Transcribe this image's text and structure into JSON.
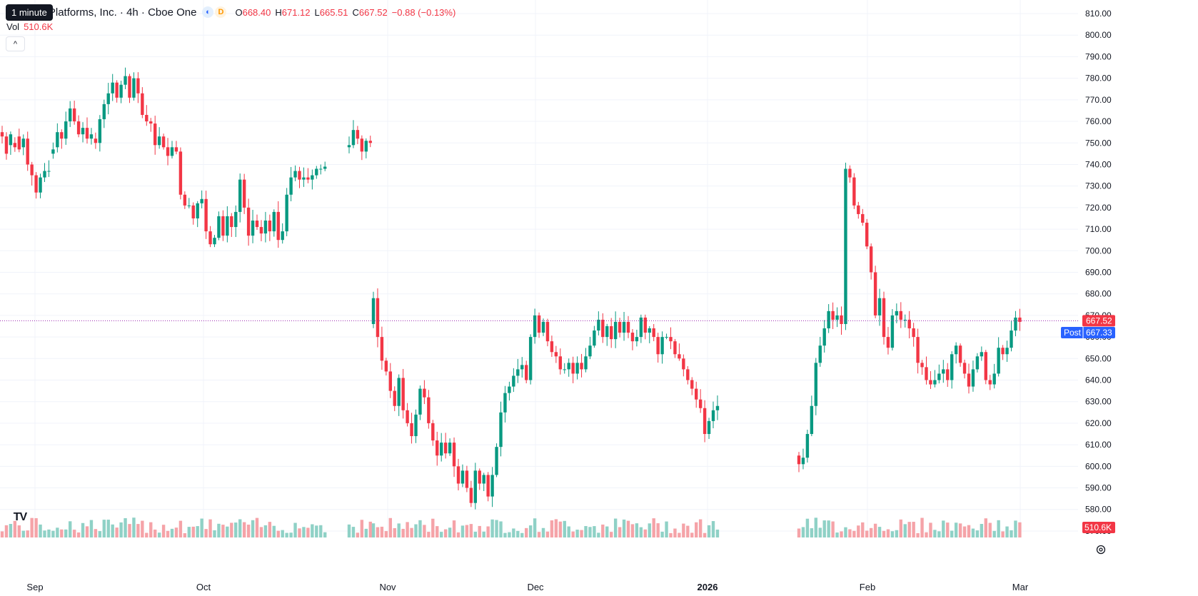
{
  "tooltip": "1 minute",
  "legend": {
    "title": "Platforms, Inc. · 4h · Cboe One",
    "session_icon": "moon-sun-icon",
    "delay_badge": "D",
    "open_label": "O",
    "open": "668.40",
    "high_label": "H",
    "high": "671.12",
    "low_label": "L",
    "low": "665.51",
    "close_label": "C",
    "close": "667.52",
    "change": "−0.88 (−0.13%)"
  },
  "volume_legend": {
    "label": "Vol",
    "value": "510.6K"
  },
  "price_axis": {
    "ticks": [
      "810.00",
      "800.00",
      "790.00",
      "780.00",
      "770.00",
      "760.00",
      "750.00",
      "740.00",
      "730.00",
      "720.00",
      "710.00",
      "700.00",
      "690.00",
      "680.00",
      "670.00",
      "660.00",
      "650.00",
      "640.00",
      "630.00",
      "620.00",
      "610.00",
      "600.00",
      "590.00",
      "580.00",
      "570.00"
    ],
    "last_price_label": "667.52",
    "post_label": "Post",
    "post_price": "667.33",
    "volume_label": "510.6K"
  },
  "time_axis": {
    "labels": [
      "Sep",
      "Oct",
      "Nov",
      "Dec",
      "2026",
      "Feb",
      "Mar"
    ],
    "bold": [
      "2026"
    ]
  },
  "colors": {
    "up": "#089981",
    "down": "#f23645",
    "up_volume": "#8fd1c6",
    "down_volume": "#f5a3a8",
    "grid": "#f0f3fa",
    "post_bg": "#2962ff",
    "last_price_line": "#9c27b0"
  },
  "chart_data": {
    "type": "candlestick",
    "interval": "4h",
    "y_range": [
      567,
      812
    ],
    "last_price": 667.52,
    "post_price": 667.33,
    "segments": [
      {
        "start": "Sep",
        "points": [
          [
            755,
            753
          ],
          [
            753,
            745
          ],
          [
            749,
            754
          ],
          [
            750,
            748
          ],
          [
            753,
            747
          ],
          [
            748,
            752
          ],
          [
            752,
            740
          ],
          [
            740,
            735
          ],
          [
            735,
            727
          ],
          [
            727,
            734
          ],
          [
            734,
            737
          ],
          [
            737,
            737
          ],
          [
            745,
            747
          ],
          [
            748,
            755
          ],
          [
            755,
            752
          ],
          [
            752,
            760
          ],
          [
            760,
            766
          ],
          [
            766,
            760
          ],
          [
            760,
            754
          ],
          [
            754,
            757
          ],
          [
            757,
            752
          ],
          [
            752,
            754
          ],
          [
            752,
            750
          ],
          [
            750,
            761
          ],
          [
            761,
            768
          ],
          [
            768,
            773
          ],
          [
            773,
            778
          ],
          [
            778,
            771
          ],
          [
            771,
            777
          ],
          [
            777,
            781
          ],
          [
            781,
            771
          ],
          [
            771,
            780
          ],
          [
            780,
            773
          ],
          [
            773,
            763
          ],
          [
            763,
            760
          ],
          [
            760,
            759
          ],
          [
            759,
            749
          ],
          [
            749,
            753
          ],
          [
            753,
            748
          ],
          [
            748,
            744
          ],
          [
            744,
            748
          ],
          [
            748,
            746
          ],
          [
            746,
            726
          ],
          [
            726,
            721
          ],
          [
            721,
            721
          ],
          [
            721,
            715
          ],
          [
            715,
            722
          ],
          [
            722,
            724
          ],
          [
            724,
            709
          ],
          [
            709,
            703
          ],
          [
            703,
            706
          ],
          [
            706,
            716
          ],
          [
            716,
            707
          ],
          [
            707,
            716
          ],
          [
            716,
            711
          ],
          [
            711,
            718
          ],
          [
            718,
            733
          ],
          [
            733,
            720
          ],
          [
            720,
            707
          ],
          [
            707,
            714
          ],
          [
            714,
            711
          ],
          [
            711,
            708
          ],
          [
            708,
            714
          ],
          [
            714,
            709
          ],
          [
            709,
            718
          ],
          [
            718,
            705
          ],
          [
            705,
            709
          ],
          [
            709,
            726
          ],
          [
            726,
            734
          ],
          [
            734,
            737
          ],
          [
            737,
            733
          ],
          [
            733,
            734
          ],
          [
            734,
            733
          ],
          [
            733,
            735
          ],
          [
            735,
            738
          ],
          [
            738,
            738
          ],
          [
            738,
            739
          ]
        ]
      },
      {
        "start": "Sep-late",
        "points": [
          [
            748,
            749
          ],
          [
            749,
            756
          ],
          [
            756,
            752
          ],
          [
            752,
            746
          ],
          [
            746,
            751
          ],
          [
            751,
            750
          ]
        ]
      },
      {
        "start": "Nov",
        "points": [
          [
            666,
            678
          ],
          [
            678,
            660
          ],
          [
            660,
            649
          ],
          [
            649,
            644
          ],
          [
            644,
            635
          ],
          [
            635,
            628
          ],
          [
            628,
            641
          ],
          [
            641,
            626
          ],
          [
            626,
            620
          ],
          [
            620,
            614
          ],
          [
            614,
            624
          ],
          [
            624,
            636
          ],
          [
            636,
            632
          ],
          [
            632,
            620
          ],
          [
            620,
            612
          ],
          [
            612,
            605
          ],
          [
            605,
            611
          ],
          [
            611,
            606
          ],
          [
            606,
            611
          ],
          [
            611,
            600
          ],
          [
            600,
            592
          ],
          [
            592,
            598
          ],
          [
            598,
            590
          ],
          [
            590,
            583
          ],
          [
            583,
            598
          ],
          [
            598,
            592
          ],
          [
            592,
            596
          ],
          [
            596,
            586
          ],
          [
            586,
            596
          ],
          [
            596,
            609
          ],
          [
            609,
            625
          ],
          [
            625,
            634
          ],
          [
            634,
            637
          ],
          [
            637,
            642
          ],
          [
            642,
            645
          ],
          [
            645,
            647
          ],
          [
            647,
            640
          ],
          [
            640,
            660
          ],
          [
            660,
            670
          ],
          [
            670,
            662
          ],
          [
            662,
            667
          ],
          [
            667,
            658
          ],
          [
            658,
            653
          ],
          [
            653,
            651
          ],
          [
            651,
            645
          ],
          [
            645,
            645
          ],
          [
            645,
            648
          ],
          [
            648,
            643
          ],
          [
            643,
            648
          ],
          [
            648,
            645
          ],
          [
            645,
            651
          ],
          [
            651,
            656
          ],
          [
            656,
            663
          ],
          [
            663,
            668
          ],
          [
            668,
            660
          ],
          [
            660,
            665
          ],
          [
            665,
            659
          ],
          [
            659,
            667
          ],
          [
            667,
            662
          ],
          [
            662,
            667
          ],
          [
            667,
            662
          ],
          [
            662,
            658
          ],
          [
            658,
            660
          ],
          [
            660,
            669
          ],
          [
            669,
            662
          ],
          [
            662,
            664
          ],
          [
            664,
            660
          ],
          [
            660,
            652
          ],
          [
            652,
            660
          ],
          [
            660,
            660
          ],
          [
            660,
            658
          ],
          [
            658,
            652
          ],
          [
            652,
            650
          ],
          [
            650,
            645
          ],
          [
            645,
            640
          ],
          [
            640,
            636
          ],
          [
            636,
            631
          ],
          [
            631,
            627
          ],
          [
            627,
            615
          ],
          [
            615,
            621
          ],
          [
            621,
            626
          ],
          [
            626,
            628
          ]
        ]
      },
      {
        "start": "Jan",
        "points": [
          [
            605,
            601
          ],
          [
            601,
            604
          ],
          [
            604,
            615
          ],
          [
            615,
            628
          ],
          [
            628,
            648
          ],
          [
            648,
            656
          ],
          [
            656,
            664
          ],
          [
            664,
            672
          ],
          [
            672,
            668
          ],
          [
            668,
            670
          ],
          [
            670,
            666
          ],
          [
            666,
            738
          ],
          [
            738,
            734
          ],
          [
            734,
            721
          ],
          [
            721,
            717
          ],
          [
            717,
            713
          ],
          [
            713,
            702
          ],
          [
            702,
            690
          ],
          [
            690,
            670
          ],
          [
            670,
            678
          ],
          [
            678,
            660
          ],
          [
            660,
            655
          ],
          [
            655,
            670
          ],
          [
            670,
            672
          ],
          [
            672,
            668
          ],
          [
            668,
            668
          ],
          [
            668,
            664
          ],
          [
            664,
            660
          ],
          [
            660,
            648
          ],
          [
            648,
            646
          ],
          [
            646,
            640
          ],
          [
            640,
            638
          ],
          [
            638,
            640
          ],
          [
            640,
            643
          ],
          [
            643,
            645
          ],
          [
            645,
            640
          ],
          [
            640,
            652
          ],
          [
            652,
            656
          ],
          [
            656,
            648
          ],
          [
            648,
            643
          ],
          [
            643,
            637
          ],
          [
            637,
            645
          ],
          [
            645,
            651
          ],
          [
            651,
            653
          ],
          [
            653,
            640
          ],
          [
            640,
            638
          ],
          [
            638,
            643
          ],
          [
            643,
            655
          ],
          [
            655,
            652
          ],
          [
            652,
            655
          ],
          [
            655,
            663
          ],
          [
            663,
            669
          ],
          [
            669,
            667
          ]
        ]
      }
    ]
  }
}
